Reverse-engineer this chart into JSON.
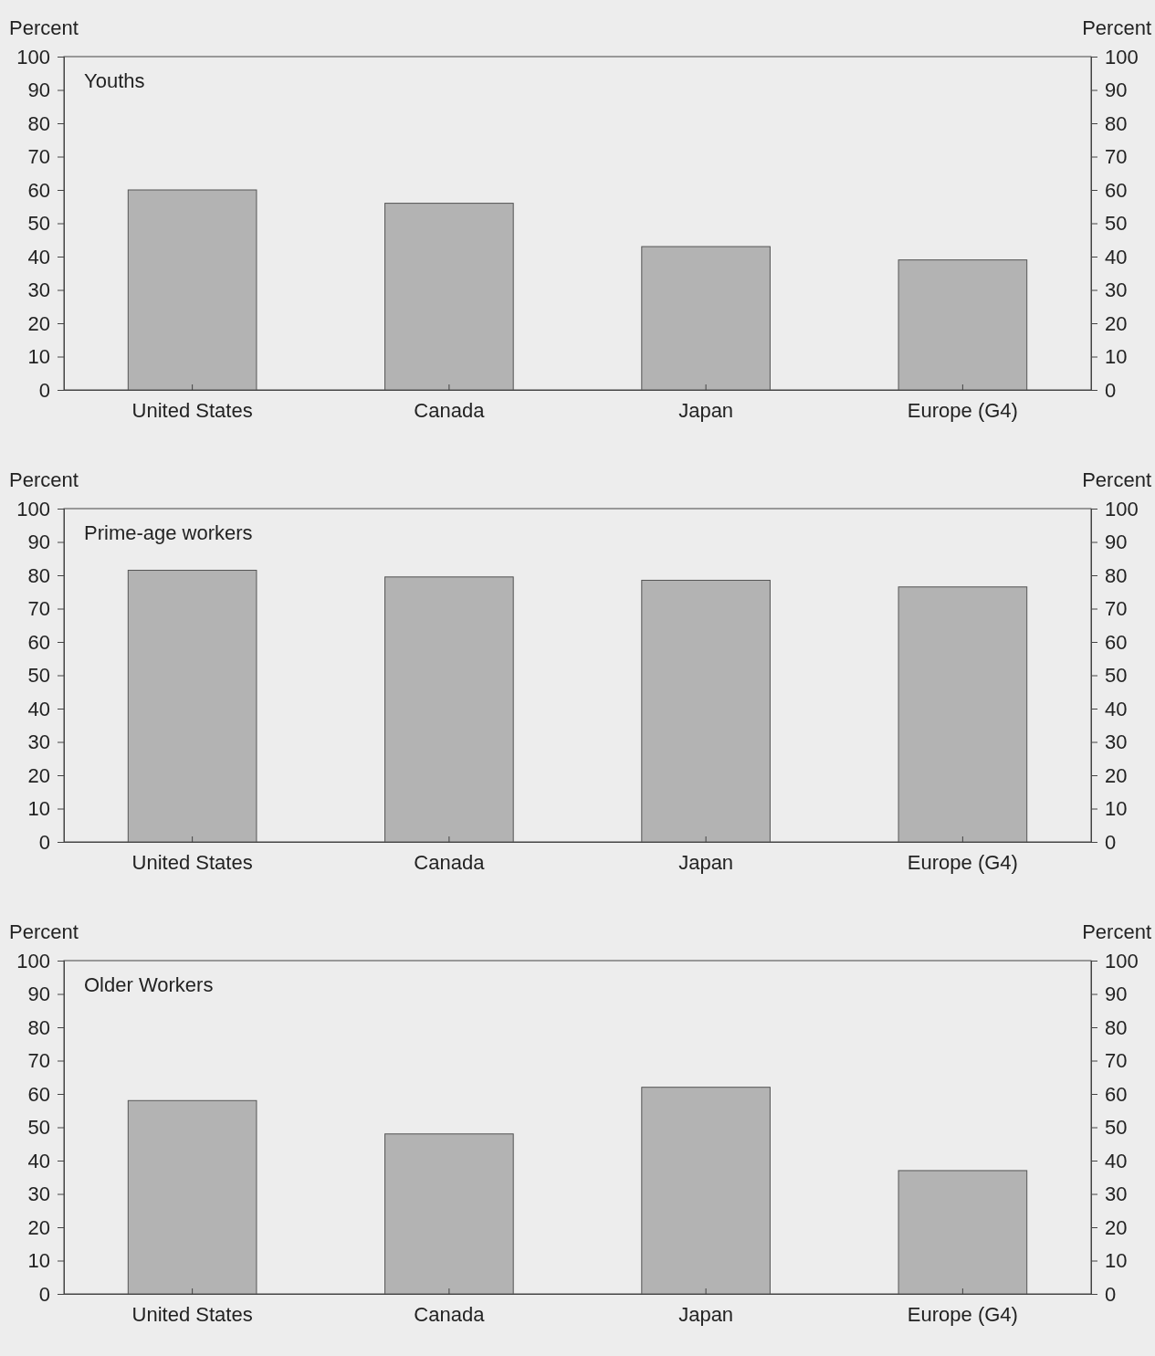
{
  "chart_data": [
    {
      "type": "bar",
      "title": "Youths",
      "ylabel": "Percent",
      "y2label": "Percent",
      "categories": [
        "United States",
        "Canada",
        "Japan",
        "Europe (G4)"
      ],
      "values": [
        60,
        56,
        43,
        39
      ],
      "color": "#b3b3b3",
      "ylim": [
        0,
        100
      ],
      "yticks": [
        0,
        10,
        20,
        30,
        40,
        50,
        60,
        70,
        80,
        90,
        100
      ],
      "y2lim": [
        0,
        100
      ],
      "y2ticks": [
        0,
        10,
        20,
        30,
        40,
        50,
        60,
        70,
        80,
        90,
        100
      ]
    },
    {
      "type": "bar",
      "title": "Prime-age workers",
      "ylabel": "Percent",
      "y2label": "Percent",
      "categories": [
        "United States",
        "Canada",
        "Japan",
        "Europe (G4)"
      ],
      "values": [
        81.5,
        79.5,
        78.5,
        76.5
      ],
      "color": "#b3b3b3",
      "ylim": [
        0,
        100
      ],
      "yticks": [
        0,
        10,
        20,
        30,
        40,
        50,
        60,
        70,
        80,
        90,
        100
      ],
      "y2lim": [
        0,
        100
      ],
      "y2ticks": [
        0,
        10,
        20,
        30,
        40,
        50,
        60,
        70,
        80,
        90,
        100
      ]
    },
    {
      "type": "bar",
      "title": "Older Workers",
      "ylabel": "Percent",
      "y2label": "Percent",
      "categories": [
        "United States",
        "Canada",
        "Japan",
        "Europe (G4)"
      ],
      "values": [
        58,
        48,
        62,
        37
      ],
      "color": "#b3b3b3",
      "ylim": [
        0,
        100
      ],
      "yticks": [
        0,
        10,
        20,
        30,
        40,
        50,
        60,
        70,
        80,
        90,
        100
      ],
      "y2lim": [
        0,
        100
      ],
      "y2ticks": [
        0,
        10,
        20,
        30,
        40,
        50,
        60,
        70,
        80,
        90,
        100
      ]
    }
  ]
}
